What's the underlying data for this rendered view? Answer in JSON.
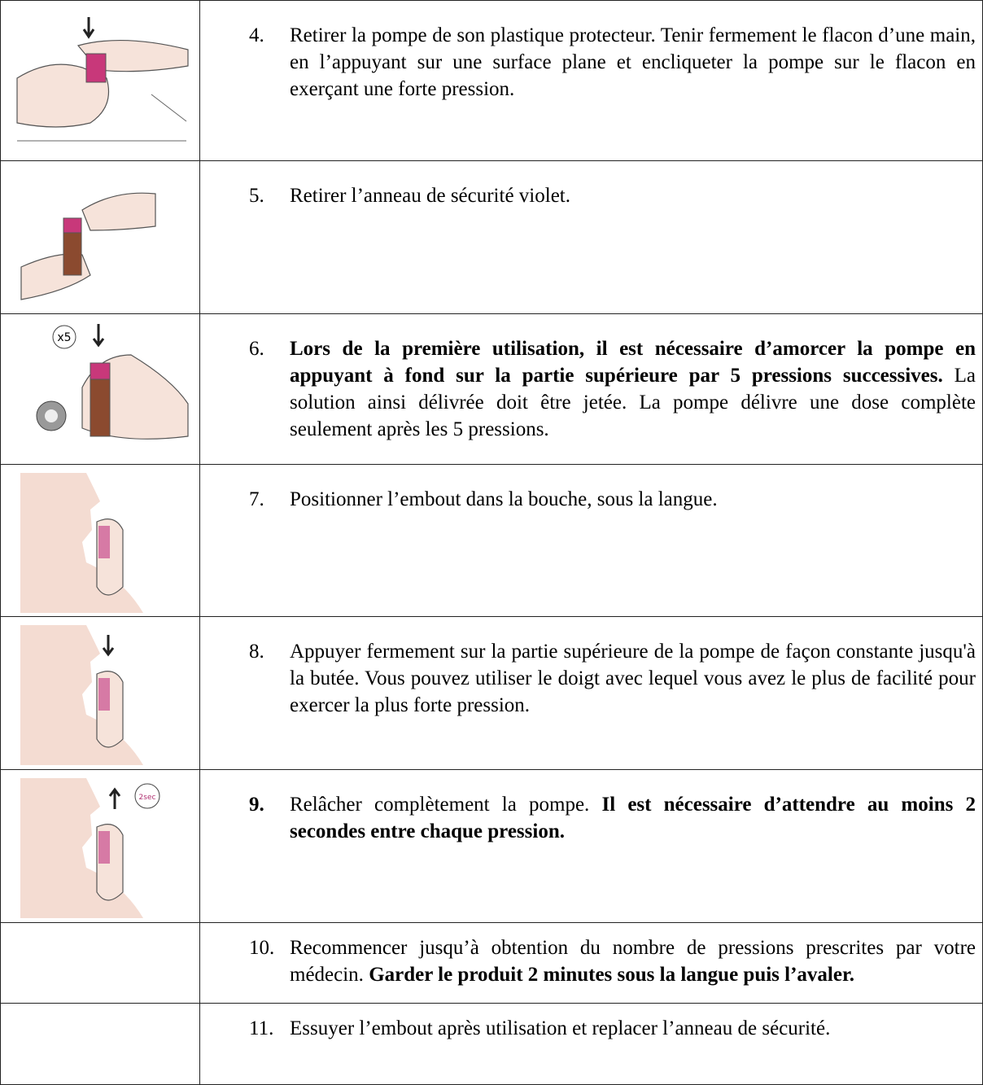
{
  "rows": [
    {
      "number": {
        "text": "4.",
        "bold": false
      },
      "runs": [
        {
          "text": "Retirer la pompe de son plastique protecteur. Tenir fermement le flacon d’une main, en l’appuyant sur une surface plane et encliqueter la pompe sur le flacon en exerçant une forte pression.",
          "bold": false
        }
      ]
    },
    {
      "number": {
        "text": "5.",
        "bold": false
      },
      "runs": [
        {
          "text": "Retirer l’anneau de sécurité violet.",
          "bold": false
        }
      ]
    },
    {
      "number": {
        "text": "6.",
        "bold": false
      },
      "runs": [
        {
          "text": "Lors de la première utilisation, il est nécessaire d’amorcer la pompe en appuyant à fond sur la partie supérieure par 5 pressions successives.",
          "bold": true
        },
        {
          "text": " La solution ainsi délivrée doit être jetée. La pompe délivre une dose complète seulement après les 5 pressions.",
          "bold": false
        }
      ]
    },
    {
      "number": {
        "text": "7.",
        "bold": false
      },
      "runs": [
        {
          "text": "Positionner l’embout dans la bouche, sous la langue.",
          "bold": false
        }
      ]
    },
    {
      "number": {
        "text": "8.",
        "bold": false
      },
      "runs": [
        {
          "text": "Appuyer fermement sur la partie supérieure de la pompe de façon constante jusqu'à la butée. Vous pouvez utiliser le doigt avec lequel vous avez le plus de facilité pour exercer la plus forte pression.",
          "bold": false
        }
      ]
    },
    {
      "number": {
        "text": "9.",
        "bold": true
      },
      "runs": [
        {
          "text": "Relâcher complètement la pompe. ",
          "bold": false
        },
        {
          "text": "Il est nécessaire d’attendre au moins 2 secondes entre chaque pression.",
          "bold": true
        }
      ]
    },
    {
      "number": {
        "text": "10.",
        "bold": false
      },
      "runs": [
        {
          "text": "Recommencer jusqu’à obtention du nombre de pressions prescrites par votre médecin. ",
          "bold": false
        },
        {
          "text": "Garder le produit 2 minutes sous la langue puis l’avaler.",
          "bold": true
        }
      ]
    },
    {
      "number": {
        "text": "11.",
        "bold": false
      },
      "runs": [
        {
          "text": "Essuyer l’embout après utilisation et replacer l’anneau de sécurité.",
          "bold": false
        }
      ]
    }
  ],
  "icons": {
    "times_five": "x5",
    "two_sec": "2sec"
  }
}
